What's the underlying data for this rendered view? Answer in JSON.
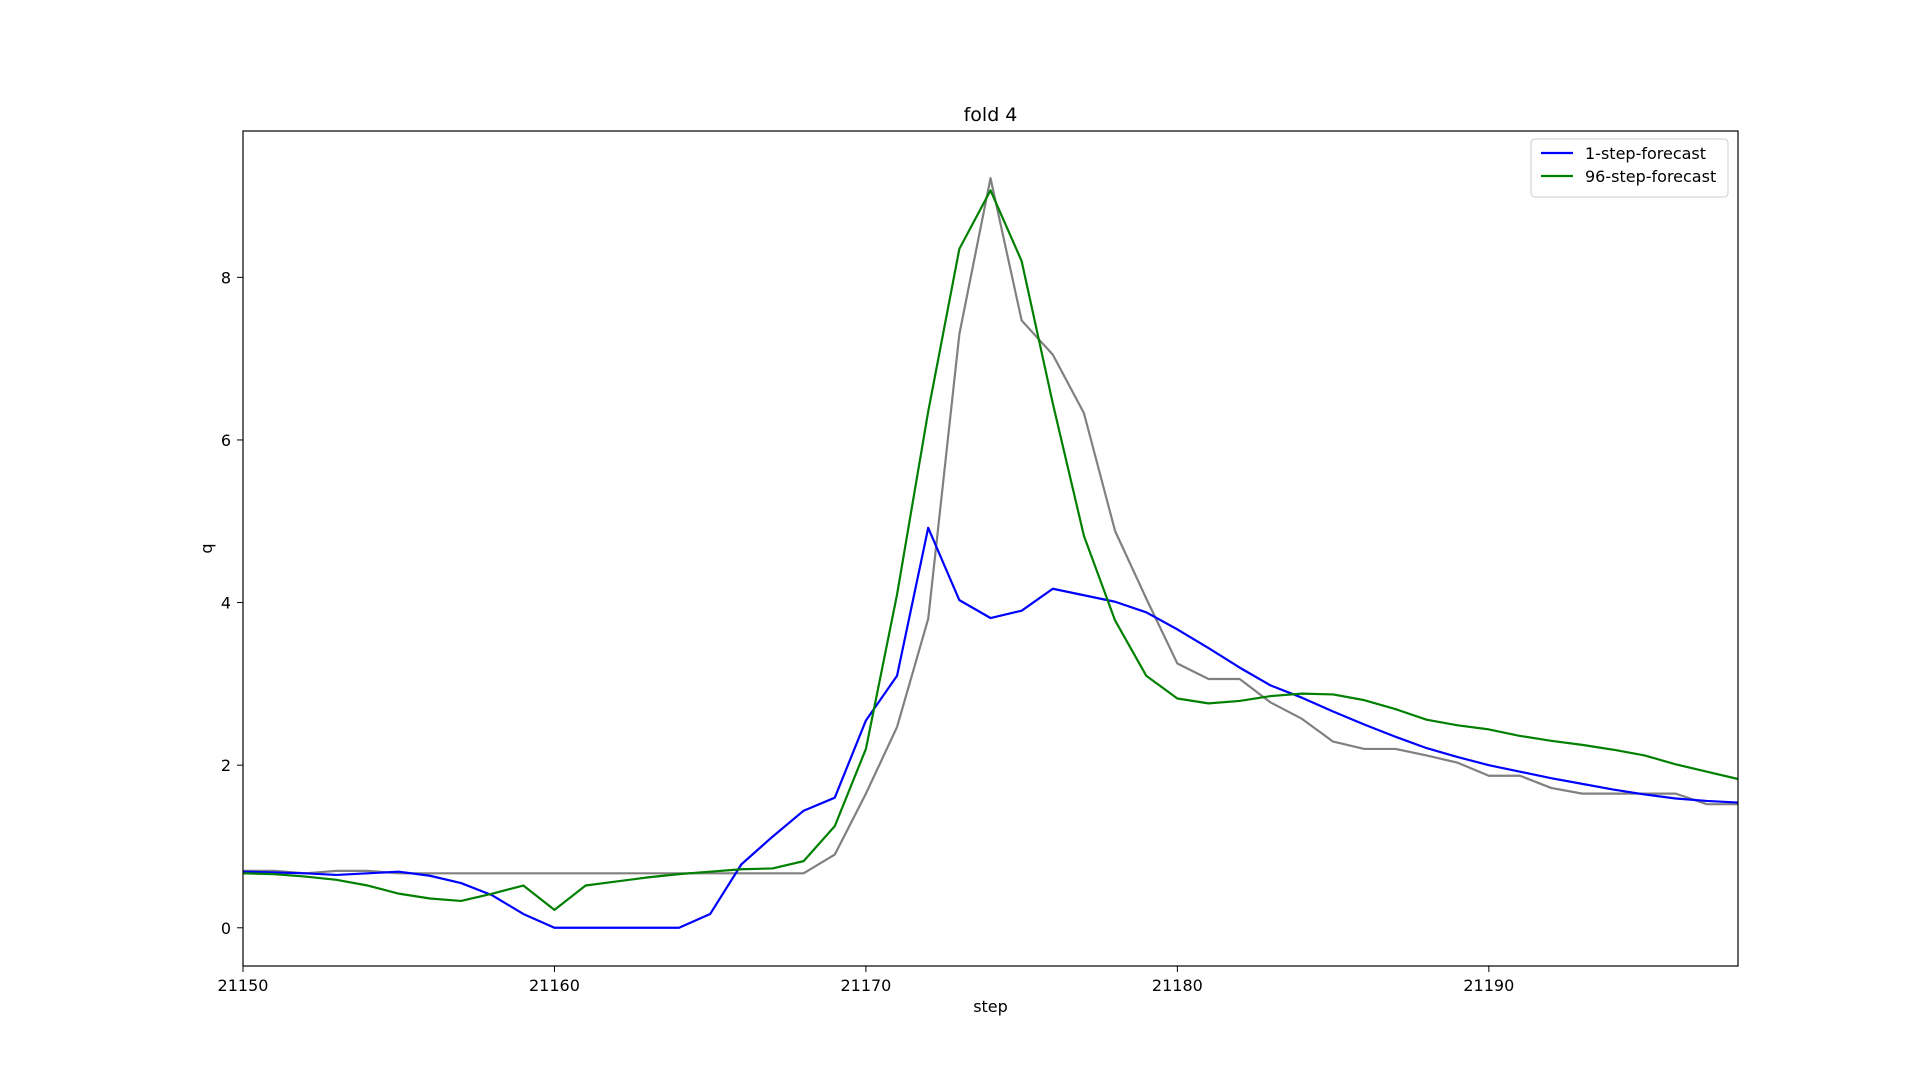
{
  "chart_data": {
    "type": "line",
    "title": "fold 4",
    "xlabel": "step",
    "ylabel": "q",
    "xlim": [
      21150,
      21198
    ],
    "ylim": [
      -0.47,
      9.8
    ],
    "xticks": [
      21150,
      21160,
      21170,
      21180,
      21190
    ],
    "yticks": [
      0,
      2,
      4,
      6,
      8
    ],
    "grid": false,
    "legend_position": "top-right",
    "x": [
      21150,
      21151,
      21152,
      21153,
      21154,
      21155,
      21156,
      21157,
      21158,
      21159,
      21160,
      21161,
      21162,
      21163,
      21164,
      21165,
      21166,
      21167,
      21168,
      21169,
      21170,
      21171,
      21172,
      21173,
      21174,
      21175,
      21176,
      21177,
      21178,
      21179,
      21180,
      21181,
      21182,
      21183,
      21184,
      21185,
      21186,
      21187,
      21188,
      21189,
      21190,
      21191,
      21192,
      21193,
      21194,
      21195,
      21196,
      21197,
      21198
    ],
    "series": [
      {
        "name": "",
        "color": "#808080",
        "values": [
          0.7,
          0.7,
          0.67,
          0.7,
          0.7,
          0.67,
          0.67,
          0.67,
          0.67,
          0.67,
          0.67,
          0.67,
          0.67,
          0.67,
          0.67,
          0.67,
          0.67,
          0.67,
          0.67,
          0.9,
          1.65,
          2.47,
          3.8,
          7.3,
          9.22,
          7.47,
          7.05,
          6.33,
          4.88,
          4.05,
          3.25,
          3.06,
          3.06,
          2.77,
          2.57,
          2.29,
          2.2,
          2.2,
          2.12,
          2.03,
          1.87,
          1.87,
          1.72,
          1.65,
          1.65,
          1.65,
          1.65,
          1.52,
          1.52
        ]
      },
      {
        "name": "1-step-forecast",
        "color": "#0000ff",
        "values": [
          0.69,
          0.68,
          0.67,
          0.65,
          0.67,
          0.69,
          0.64,
          0.55,
          0.4,
          0.17,
          0.0,
          0.0,
          0.0,
          0.0,
          0.0,
          0.17,
          0.78,
          1.12,
          1.44,
          1.6,
          2.55,
          3.1,
          4.92,
          4.03,
          3.81,
          3.9,
          4.17,
          4.09,
          4.01,
          3.88,
          3.67,
          3.44,
          3.2,
          2.98,
          2.83,
          2.66,
          2.5,
          2.35,
          2.21,
          2.1,
          2.0,
          1.92,
          1.84,
          1.77,
          1.7,
          1.64,
          1.59,
          1.56,
          1.54
        ]
      },
      {
        "name": "96-step-forecast",
        "color": "#008000",
        "values": [
          0.67,
          0.66,
          0.63,
          0.59,
          0.52,
          0.42,
          0.36,
          0.33,
          0.42,
          0.52,
          0.22,
          0.52,
          0.57,
          0.62,
          0.66,
          0.69,
          0.72,
          0.73,
          0.82,
          1.25,
          2.2,
          4.1,
          6.35,
          8.35,
          9.07,
          8.2,
          6.45,
          4.82,
          3.78,
          3.1,
          2.82,
          2.76,
          2.79,
          2.85,
          2.88,
          2.87,
          2.8,
          2.69,
          2.56,
          2.49,
          2.44,
          2.36,
          2.3,
          2.25,
          2.19,
          2.12,
          2.01,
          1.92,
          1.83
        ]
      }
    ]
  }
}
